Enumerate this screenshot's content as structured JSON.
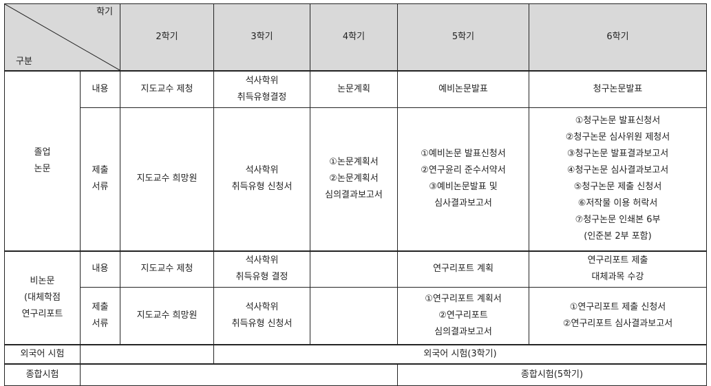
{
  "header": {
    "corner_top": "학기",
    "corner_bottom": "구분",
    "semesters": [
      "2학기",
      "3학기",
      "4학기",
      "5학기",
      "6학기"
    ]
  },
  "thesis": {
    "group": "졸업\n논문",
    "content": {
      "label": "내용",
      "cells": [
        "지도교수 제청",
        "석사학위\n취득유형결정",
        "논문계획",
        "예비논문발표",
        "청구논문발표"
      ]
    },
    "documents": {
      "label": "제출\n서류",
      "cells": [
        "지도교수 희망원",
        "석사학위\n취득유형 신청서",
        "①논문계획서\n②논문계획서\n심의결과보고서",
        "①예비논문 발표신청서\n②연구윤리 준수서약서\n③예비논문발표 및\n심사결과보고서",
        "①청구논문 발표신청서\n②청구논문 심사위원 제청서\n③청구논문 발표결과보고서\n④청구논문 심사결과보고서\n⑤청구논문 제출 신청서\n⑥저작물 이용 허락서\n⑦청구논문 인쇄본 6부\n(인준본 2부 포함)"
      ]
    }
  },
  "non_thesis": {
    "group": "비논문\n(대체학점\n연구리포트",
    "content": {
      "label": "내용",
      "cells": [
        "지도교수 제청",
        "석사학위\n취득유형 결정",
        "",
        "연구리포트 계획",
        "연구리포트 제출\n대체과목 수강"
      ]
    },
    "documents": {
      "label": "제출\n서류",
      "cells": [
        "지도교수 희망원",
        "석사학위\n취득유형 신청서",
        "",
        "①연구리포트 계획서\n②연구리포트\n심의결과보고서",
        "①연구리포트 제출 신청서\n②연구리포트 심사결과보고서"
      ]
    }
  },
  "foreign_exam": {
    "label": "외국어 시험",
    "value": "외국어 시험(3학기)"
  },
  "comprehensive_exam": {
    "label": "종합시험",
    "value": "종합시험(5학기)"
  }
}
